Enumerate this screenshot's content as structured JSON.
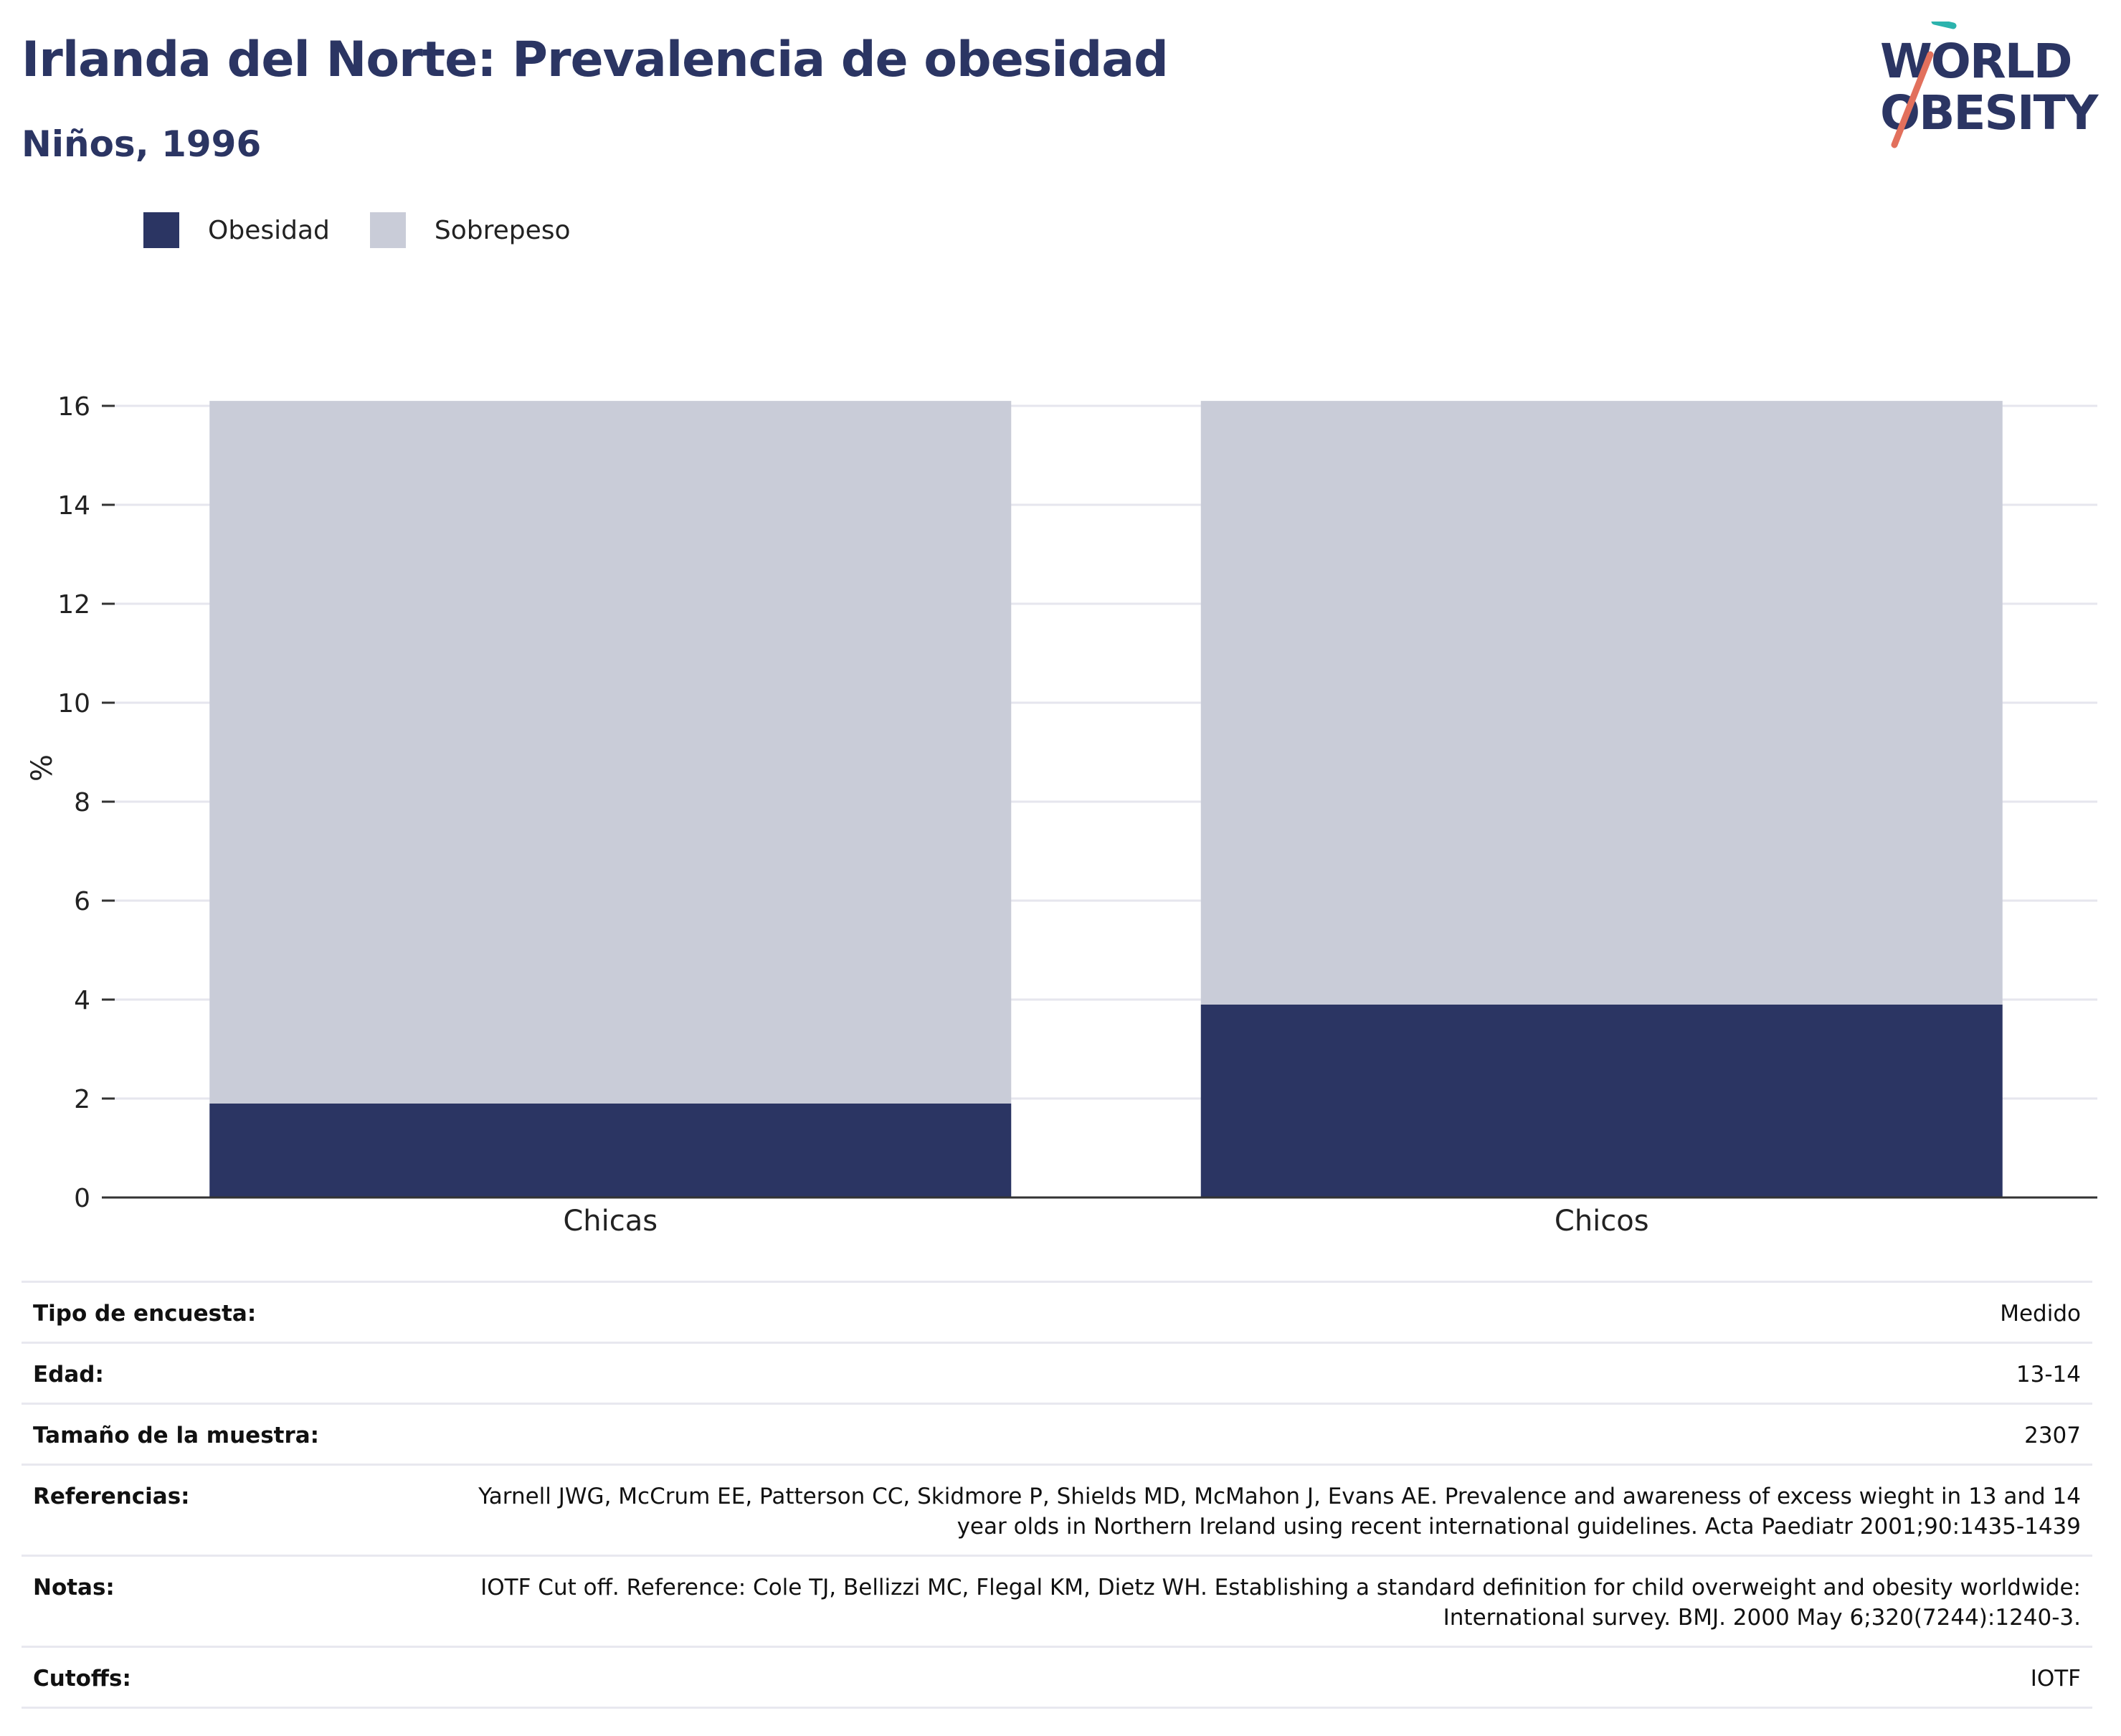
{
  "header": {
    "title": "Irlanda del Norte: Prevalencia de obesidad",
    "subtitle": "Niños, 1996"
  },
  "logo": {
    "line1": "WORLD",
    "line2": "OBESITY"
  },
  "colors": {
    "obesidad": "#2b3563",
    "sobrepeso": "#c9ccd8",
    "title": "#2b3563",
    "grid": "#e6e6ee",
    "axis": "#333333"
  },
  "legend": [
    {
      "label": "Obesidad",
      "color": "#2b3563"
    },
    {
      "label": "Sobrepeso",
      "color": "#c9ccd8"
    }
  ],
  "chart_data": {
    "type": "bar",
    "stacked": true,
    "categories": [
      "Chicas",
      "Chicos"
    ],
    "series": [
      {
        "name": "Obesidad",
        "values": [
          1.9,
          3.9
        ]
      },
      {
        "name": "Sobrepeso",
        "values": [
          14.2,
          12.2
        ]
      }
    ],
    "ylabel": "%",
    "ylim": [
      0,
      16
    ],
    "yticks": [
      0,
      2,
      4,
      6,
      8,
      10,
      12,
      14,
      16
    ],
    "grid": true,
    "legend_position": "top-left"
  },
  "meta": [
    {
      "key": "Tipo de encuesta:",
      "value": "Medido"
    },
    {
      "key": "Edad:",
      "value": "13-14"
    },
    {
      "key": "Tamaño de la muestra:",
      "value": "2307"
    },
    {
      "key": "Referencias:",
      "value": "Yarnell JWG, McCrum EE, Patterson CC, Skidmore P, Shields MD, McMahon J, Evans AE. Prevalence and awareness of excess wieght in 13 and 14 year olds in Northern Ireland using recent international guidelines. Acta Paediatr 2001;90:1435-1439"
    },
    {
      "key": "Notas:",
      "value": "IOTF Cut off. Reference: Cole TJ, Bellizzi MC, Flegal KM, Dietz WH. Establishing a standard definition for child overweight and obesity worldwide: International survey. BMJ. 2000 May 6;320(7244):1240-3."
    },
    {
      "key": "Cutoffs:",
      "value": "IOTF"
    }
  ]
}
